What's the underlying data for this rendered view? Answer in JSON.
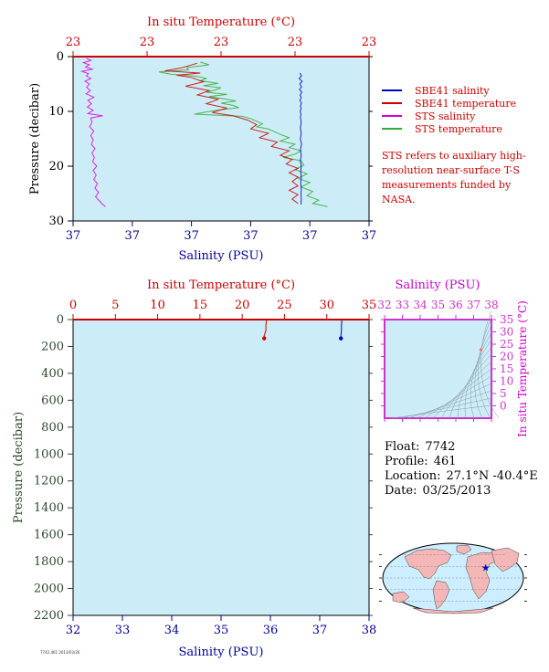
{
  "colors": {
    "plot_bg": "#ccedf7",
    "sbe_salinity": "#0000cc",
    "sbe_temperature": "#cc0000",
    "sts_salinity": "#dd00dd",
    "sts_temperature": "#33aa33",
    "temp_axis": "#cc0000",
    "salinity_axis": "#000099",
    "pressure_axis": "#2d4a2d",
    "ts_frame": "#cc33cc",
    "map_land": "#f4b7b7",
    "map_ocean": "#cceeff"
  },
  "legend": {
    "items": [
      {
        "label": "SBE41 salinity",
        "color": "#0000cc"
      },
      {
        "label": "SBE41 temperature",
        "color": "#cc0000"
      },
      {
        "label": "STS salinity",
        "color": "#dd00dd"
      },
      {
        "label": "STS temperature",
        "color": "#33aa33"
      }
    ],
    "note": "STS refers to auxiliary high-resolution near-surface T-S measurements funded by NASA."
  },
  "float_info": {
    "float_label": "Float:",
    "float_value": "7742",
    "profile_label": "Profile:",
    "profile_value": "461",
    "location_label": "Location:",
    "location_value": "27.1°N  -40.4°E",
    "date_label": "Date:",
    "date_value": "03/25/2013"
  },
  "stamp": "7742.461 2013/03/26",
  "chart_data": [
    {
      "type": "line",
      "name": "upper",
      "title_top": "In situ Temperature (°C)",
      "xlabel": "Salinity (PSU)",
      "ylabel": "Pressure (decibar)",
      "top_ticks": [
        "23",
        "23",
        "23",
        "23",
        "23"
      ],
      "bottom_ticks": [
        "37",
        "37",
        "37",
        "37",
        "37",
        "37"
      ],
      "ylim": [
        0,
        30
      ],
      "yticks": [
        0,
        10,
        20,
        30
      ],
      "note": "x positions given as fraction of axis width (tick labels are rounded and identical)",
      "series": [
        {
          "name": "STS salinity",
          "color": "#dd00dd",
          "points": [
            [
              0.045,
              0.3
            ],
            [
              0.06,
              0.7
            ],
            [
              0.035,
              1.1
            ],
            [
              0.055,
              1.5
            ],
            [
              0.042,
              1.9
            ],
            [
              0.065,
              2.3
            ],
            [
              0.03,
              2.7
            ],
            [
              0.052,
              3.1
            ],
            [
              0.045,
              3.5
            ],
            [
              0.06,
              4.0
            ],
            [
              0.04,
              4.5
            ],
            [
              0.055,
              5.0
            ],
            [
              0.046,
              5.6
            ],
            [
              0.058,
              6.2
            ],
            [
              0.044,
              6.8
            ],
            [
              0.07,
              7.4
            ],
            [
              0.05,
              8.0
            ],
            [
              0.062,
              8.6
            ],
            [
              0.048,
              9.2
            ],
            [
              0.068,
              9.8
            ],
            [
              0.05,
              10.4
            ],
            [
              0.1,
              10.8
            ],
            [
              0.06,
              11.2
            ],
            [
              0.064,
              12.0
            ],
            [
              0.056,
              12.8
            ],
            [
              0.07,
              13.6
            ],
            [
              0.06,
              14.4
            ],
            [
              0.068,
              15.2
            ],
            [
              0.062,
              16.0
            ],
            [
              0.074,
              16.8
            ],
            [
              0.064,
              17.6
            ],
            [
              0.072,
              18.4
            ],
            [
              0.066,
              19.2
            ],
            [
              0.08,
              20.0
            ],
            [
              0.068,
              20.8
            ],
            [
              0.078,
              21.6
            ],
            [
              0.07,
              22.4
            ],
            [
              0.082,
              23.2
            ],
            [
              0.074,
              24.0
            ],
            [
              0.086,
              24.8
            ],
            [
              0.076,
              25.6
            ],
            [
              0.09,
              26.4
            ],
            [
              0.1,
              27.0
            ],
            [
              0.11,
              27.4
            ]
          ]
        },
        {
          "name": "STS temperature",
          "color": "#33aa33",
          "points": [
            [
              0.43,
              1.0
            ],
            [
              0.46,
              1.5
            ],
            [
              0.385,
              2.0
            ],
            [
              0.39,
              2.4
            ],
            [
              0.29,
              2.8
            ],
            [
              0.33,
              3.2
            ],
            [
              0.42,
              3.6
            ],
            [
              0.45,
              4.0
            ],
            [
              0.43,
              4.4
            ],
            [
              0.49,
              4.9
            ],
            [
              0.44,
              5.3
            ],
            [
              0.5,
              5.7
            ],
            [
              0.48,
              6.1
            ],
            [
              0.45,
              6.5
            ],
            [
              0.52,
              6.9
            ],
            [
              0.46,
              7.3
            ],
            [
              0.51,
              7.7
            ],
            [
              0.55,
              8.1
            ],
            [
              0.5,
              8.5
            ],
            [
              0.54,
              8.9
            ],
            [
              0.56,
              9.3
            ],
            [
              0.5,
              9.7
            ],
            [
              0.45,
              10.1
            ],
            [
              0.41,
              10.5
            ],
            [
              0.57,
              10.9
            ],
            [
              0.6,
              11.3
            ],
            [
              0.62,
              11.8
            ],
            [
              0.64,
              12.3
            ],
            [
              0.62,
              12.8
            ],
            [
              0.66,
              13.2
            ],
            [
              0.68,
              13.7
            ],
            [
              0.7,
              14.2
            ],
            [
              0.73,
              14.8
            ],
            [
              0.7,
              15.4
            ],
            [
              0.75,
              16.0
            ],
            [
              0.73,
              16.6
            ],
            [
              0.77,
              17.2
            ],
            [
              0.75,
              17.8
            ],
            [
              0.71,
              18.4
            ],
            [
              0.77,
              19.0
            ],
            [
              0.78,
              19.8
            ],
            [
              0.75,
              20.6
            ],
            [
              0.79,
              21.4
            ],
            [
              0.76,
              22.2
            ],
            [
              0.8,
              23.0
            ],
            [
              0.77,
              23.8
            ],
            [
              0.81,
              24.6
            ],
            [
              0.79,
              25.4
            ],
            [
              0.83,
              26.2
            ],
            [
              0.81,
              26.8
            ],
            [
              0.86,
              27.4
            ]
          ]
        },
        {
          "name": "SBE41 temperature",
          "color": "#cc0000",
          "points": [
            [
              0.42,
              1.2
            ],
            [
              0.37,
              2.0
            ],
            [
              0.31,
              2.6
            ],
            [
              0.43,
              3.0
            ],
            [
              0.35,
              3.4
            ],
            [
              0.4,
              3.8
            ],
            [
              0.44,
              4.6
            ],
            [
              0.38,
              5.4
            ],
            [
              0.46,
              6.2
            ],
            [
              0.42,
              7.0
            ],
            [
              0.49,
              7.8
            ],
            [
              0.45,
              8.6
            ],
            [
              0.52,
              9.4
            ],
            [
              0.47,
              10.2
            ],
            [
              0.54,
              10.8
            ],
            [
              0.59,
              11.6
            ],
            [
              0.62,
              12.4
            ],
            [
              0.6,
              13.2
            ],
            [
              0.66,
              14.0
            ],
            [
              0.63,
              14.8
            ],
            [
              0.69,
              15.6
            ],
            [
              0.67,
              16.4
            ],
            [
              0.73,
              17.2
            ],
            [
              0.7,
              18.0
            ],
            [
              0.74,
              18.8
            ],
            [
              0.72,
              19.6
            ],
            [
              0.76,
              20.4
            ],
            [
              0.73,
              21.2
            ],
            [
              0.76,
              22.0
            ],
            [
              0.74,
              22.8
            ],
            [
              0.76,
              23.6
            ],
            [
              0.73,
              24.4
            ],
            [
              0.76,
              25.2
            ],
            [
              0.74,
              26.0
            ],
            [
              0.76,
              26.8
            ]
          ]
        },
        {
          "name": "SBE41 salinity",
          "color": "#0000cc",
          "points": [
            [
              0.766,
              3.0
            ],
            [
              0.772,
              3.5
            ],
            [
              0.764,
              4.0
            ],
            [
              0.774,
              4.5
            ],
            [
              0.766,
              5.0
            ],
            [
              0.772,
              5.5
            ],
            [
              0.765,
              6.0
            ],
            [
              0.773,
              6.5
            ],
            [
              0.767,
              7.0
            ],
            [
              0.771,
              7.5
            ],
            [
              0.766,
              8.0
            ],
            [
              0.772,
              8.5
            ],
            [
              0.768,
              9.0
            ],
            [
              0.771,
              9.5
            ],
            [
              0.767,
              10.0
            ],
            [
              0.77,
              10.5
            ],
            [
              0.768,
              11.0
            ],
            [
              0.771,
              12.0
            ],
            [
              0.768,
              13.0
            ],
            [
              0.771,
              14.0
            ],
            [
              0.768,
              15.0
            ],
            [
              0.772,
              16.0
            ],
            [
              0.768,
              17.0
            ],
            [
              0.771,
              18.0
            ],
            [
              0.768,
              19.0
            ],
            [
              0.771,
              20.0
            ],
            [
              0.769,
              21.0
            ],
            [
              0.771,
              22.0
            ],
            [
              0.769,
              23.0
            ],
            [
              0.771,
              24.0
            ],
            [
              0.77,
              25.0
            ],
            [
              0.771,
              26.0
            ],
            [
              0.77,
              27.0
            ]
          ]
        }
      ]
    },
    {
      "type": "line",
      "name": "lower",
      "title_top": "In situ Temperature (°C)",
      "xlabel": "Salinity (PSU)",
      "ylabel": "Pressure (decibar)",
      "top_xlim": [
        0,
        35
      ],
      "top_ticks": [
        0,
        5,
        10,
        15,
        20,
        25,
        30,
        35
      ],
      "bottom_xlim": [
        32,
        38
      ],
      "bottom_ticks": [
        32,
        33,
        34,
        35,
        36,
        37,
        38
      ],
      "ylim": [
        0,
        2200
      ],
      "yticks": [
        0,
        200,
        400,
        600,
        800,
        1000,
        1200,
        1400,
        1600,
        1800,
        2000,
        2200
      ],
      "series": [
        {
          "name": "SBE41 temperature",
          "color": "#cc0000",
          "axis": "top",
          "points": [
            [
              22.9,
              0
            ],
            [
              22.8,
              40
            ],
            [
              22.8,
              80
            ],
            [
              22.6,
              120
            ],
            [
              22.6,
              140
            ]
          ]
        },
        {
          "name": "SBE41 salinity",
          "color": "#0000cc",
          "axis": "bottom",
          "points": [
            [
              37.45,
              0
            ],
            [
              37.44,
              40
            ],
            [
              37.44,
              80
            ],
            [
              37.43,
              120
            ],
            [
              37.43,
              140
            ]
          ]
        }
      ]
    },
    {
      "type": "scatter",
      "name": "ts_diagram",
      "title_top": "Salinity (PSU)",
      "ylabel": "In situ Temperature (°C)",
      "xlim": [
        32,
        38
      ],
      "xticks": [
        32,
        33,
        34,
        35,
        36,
        37,
        38
      ],
      "ylim": [
        -5,
        35
      ],
      "yticks": [
        0,
        5,
        10,
        15,
        20,
        25,
        30,
        35
      ],
      "points": [
        [
          37.4,
          22.8
        ]
      ]
    }
  ]
}
